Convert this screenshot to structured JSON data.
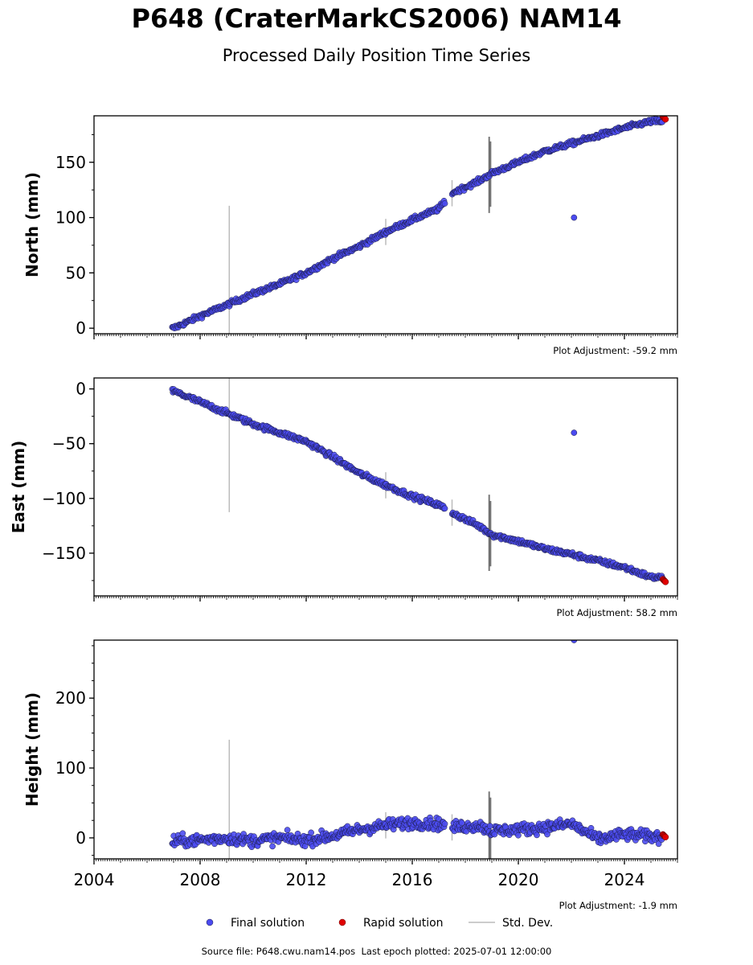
{
  "title": "P648 (CraterMarkCS2006) NAM14",
  "subtitle": "Processed Daily Position Time Series",
  "footer": {
    "source_file": "Source file: P648.cwu.nam14.pos",
    "last_epoch": "Last epoch plotted: 2025-07-01 12:00:00"
  },
  "colors": {
    "final": "#4b4bf0",
    "final_edge": "#1a1a40",
    "rapid": "#e00000",
    "stddev": "#bbbbbb",
    "stddev_dark": "#555555"
  },
  "chart_data": [
    {
      "type": "scatter",
      "ylabel": "North (mm)",
      "xlim": [
        2004,
        2026
      ],
      "ylim": [
        -5,
        192
      ],
      "yticks": [
        0,
        50,
        100,
        150
      ],
      "adjustment": "Plot Adjustment: -59.2 mm",
      "series": [
        {
          "name": "Final solution",
          "x": [
            2007.0,
            2008.0,
            2009.0,
            2010.0,
            2011.0,
            2012.0,
            2013.0,
            2014.0,
            2015.0,
            2016.0,
            2017.0,
            2017.5,
            2018.5,
            2019.0,
            2020.0,
            2021.0,
            2022.0,
            2023.0,
            2024.0,
            2025.0
          ],
          "y": [
            0,
            11,
            21,
            31,
            40,
            50,
            63,
            74,
            87,
            98,
            108,
            122,
            133,
            140,
            150,
            160,
            167,
            174,
            181,
            187
          ]
        },
        {
          "name": "Rapid solution",
          "x": [
            2025.5
          ],
          "y": [
            190
          ]
        }
      ],
      "outliers": [
        {
          "x": 2022.1,
          "y": 100
        }
      ]
    },
    {
      "type": "scatter",
      "ylabel": "East (mm)",
      "xlim": [
        2004,
        2026
      ],
      "ylim": [
        -189,
        10
      ],
      "yticks": [
        0,
        -50,
        -100,
        -150
      ],
      "adjustment": "Plot Adjustment: 58.2 mm",
      "series": [
        {
          "name": "Final solution",
          "x": [
            2007.0,
            2008.0,
            2009.0,
            2010.0,
            2011.0,
            2012.0,
            2013.0,
            2014.0,
            2015.0,
            2016.0,
            2017.0,
            2017.5,
            2018.5,
            2019.0,
            2020.0,
            2021.0,
            2022.0,
            2023.0,
            2024.0,
            2025.0
          ],
          "y": [
            -2,
            -12,
            -22,
            -32,
            -40,
            -48,
            -62,
            -77,
            -88,
            -98,
            -106,
            -113,
            -125,
            -133,
            -139,
            -146,
            -151,
            -157,
            -163,
            -172
          ]
        },
        {
          "name": "Rapid solution",
          "x": [
            2025.5
          ],
          "y": [
            -175
          ]
        }
      ],
      "outliers": [
        {
          "x": 2022.1,
          "y": -40
        }
      ]
    },
    {
      "type": "scatter",
      "ylabel": "Height (mm)",
      "xlim": [
        2004,
        2026
      ],
      "ylim": [
        -30,
        283
      ],
      "yticks": [
        0,
        100,
        200
      ],
      "xticks": [
        2004,
        2008,
        2012,
        2016,
        2020,
        2024
      ],
      "adjustment": "Plot Adjustment: -1.9 mm",
      "series": [
        {
          "name": "Final solution",
          "x": [
            2007.0,
            2008.0,
            2009.0,
            2010.0,
            2011.0,
            2012.0,
            2013.0,
            2014.0,
            2015.0,
            2016.0,
            2017.0,
            2017.5,
            2018.5,
            2019.0,
            2020.0,
            2021.0,
            2022.0,
            2023.0,
            2024.0,
            2025.0
          ],
          "y": [
            -5,
            -3,
            0,
            -4,
            0,
            -3,
            3,
            12,
            18,
            22,
            20,
            15,
            18,
            10,
            12,
            15,
            20,
            -2,
            5,
            2
          ]
        },
        {
          "name": "Rapid solution",
          "x": [
            2025.5
          ],
          "y": [
            3
          ]
        }
      ],
      "outliers": [
        {
          "x": 2022.1,
          "y": 283
        }
      ]
    }
  ],
  "legend": {
    "placement": "bottom-center",
    "items": [
      {
        "label": "Final solution",
        "kind": "final"
      },
      {
        "label": "Rapid solution",
        "kind": "rapid"
      },
      {
        "label": "Std. Dev.",
        "kind": "stddev"
      }
    ]
  }
}
